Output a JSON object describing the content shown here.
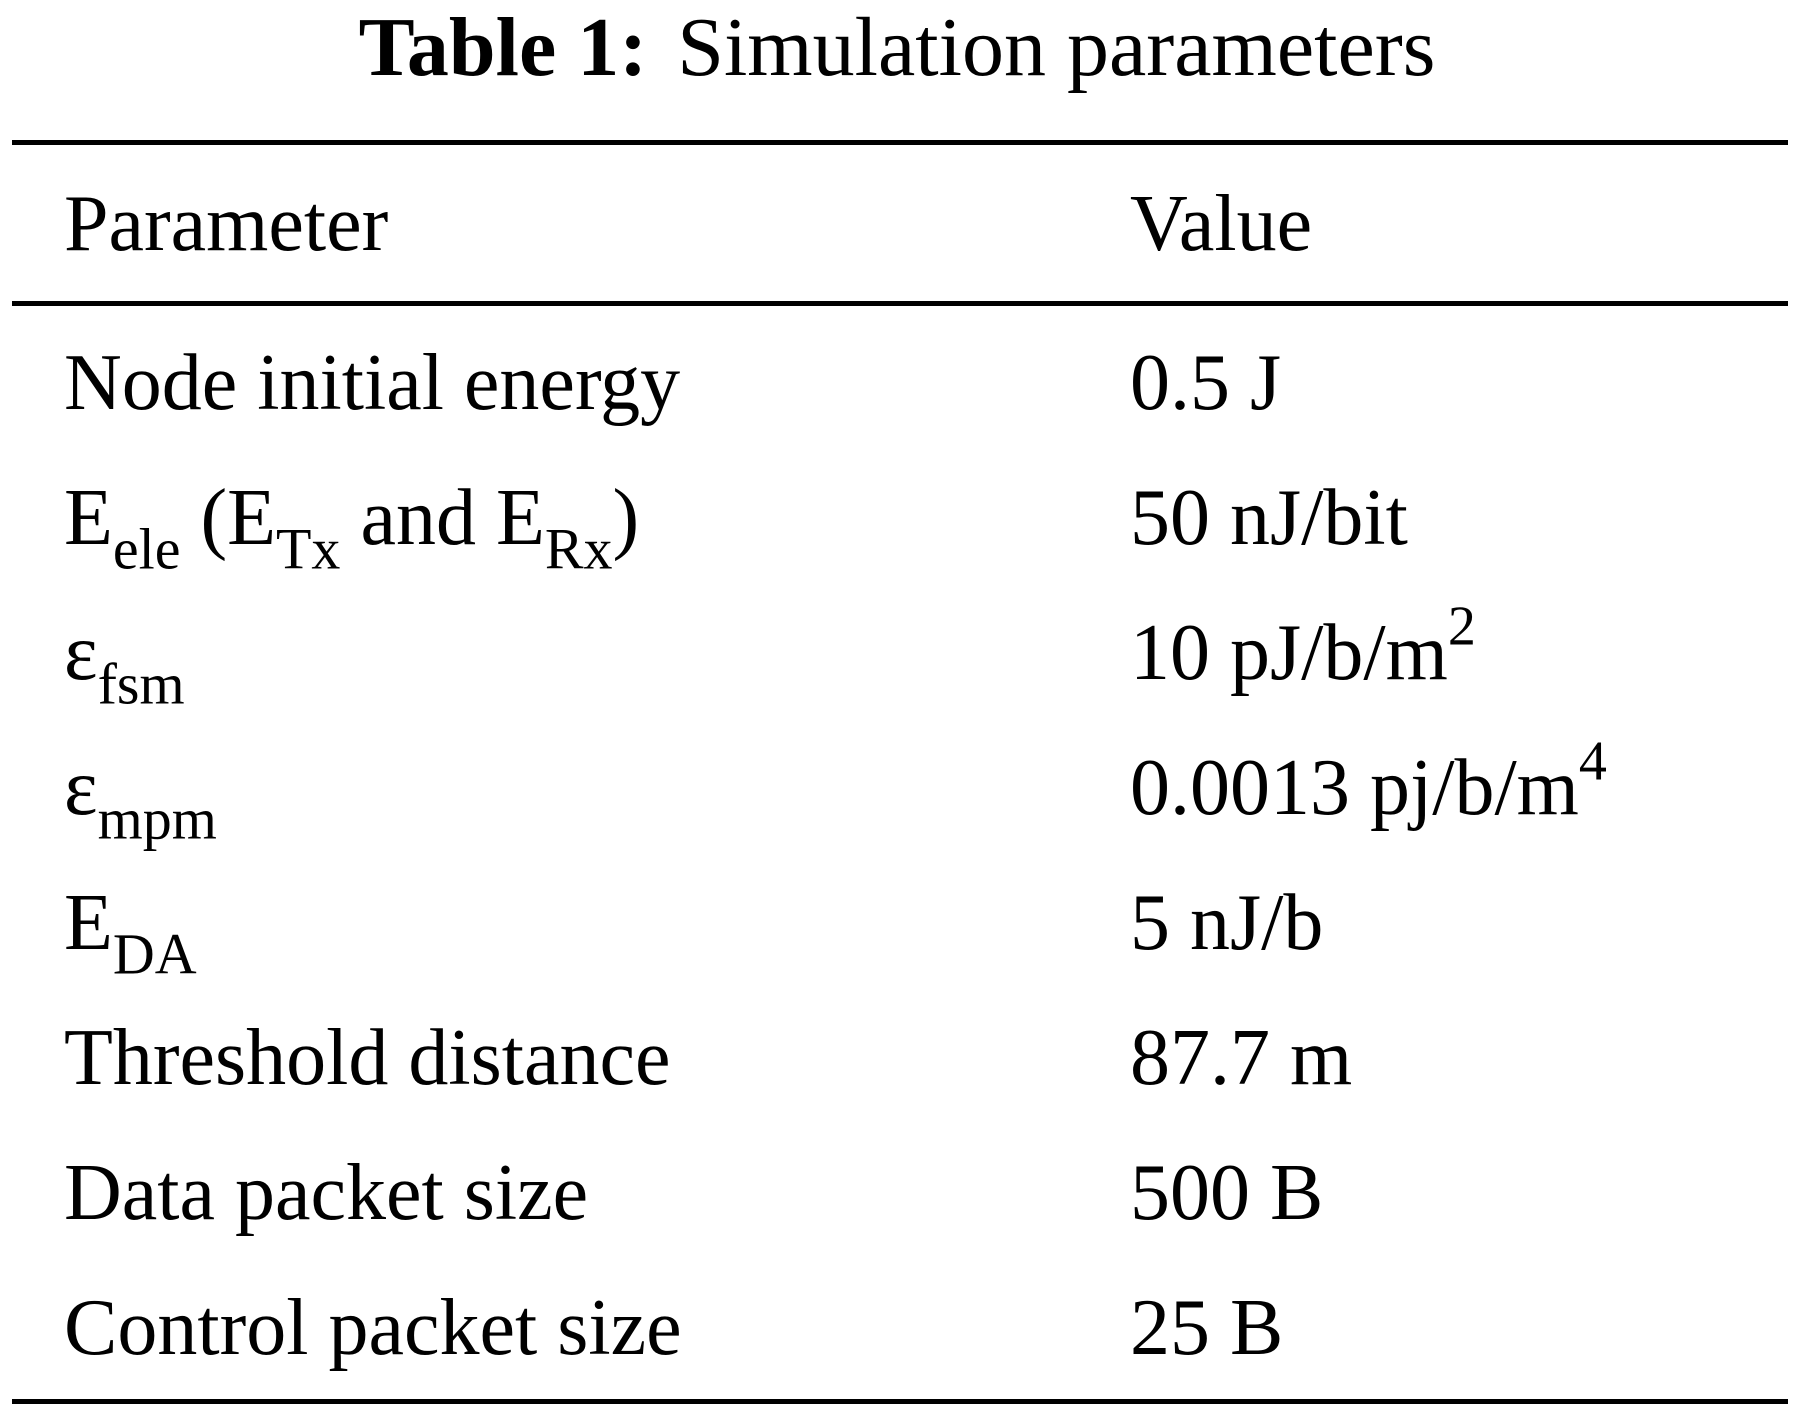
{
  "caption": {
    "label": "Table 1:",
    "title": "Simulation parameters"
  },
  "table": {
    "headers": {
      "parameter": "Parameter",
      "value": "Value"
    },
    "rows": [
      {
        "parameter": "Node initial energy",
        "value": "0.5 J"
      },
      {
        "parameter": "Eele (ETx and ERx)",
        "value": "50 nJ/bit"
      },
      {
        "parameter": "εfsm",
        "value": "10 pJ/b/m2"
      },
      {
        "parameter": "εmpm",
        "value": "0.0013 pj/b/m4"
      },
      {
        "parameter": "EDA",
        "value": "5 nJ/b"
      },
      {
        "parameter": "Threshold distance",
        "value": "87.7 m"
      },
      {
        "parameter": "Data packet size",
        "value": "500 B"
      },
      {
        "parameter": "Control packet size",
        "value": "25 B"
      }
    ],
    "formatted": {
      "eele": {
        "E": "E",
        "ele": "ele",
        "open": " (E",
        "tx": "Tx",
        "and": " and E",
        "rx": "Rx",
        "close": ")"
      },
      "efsm": {
        "eps": "ε",
        "sub": "fsm",
        "value_base": "10 pJ/b/m",
        "value_exp": "2"
      },
      "empm": {
        "eps": "ε",
        "sub": "mpm",
        "value_base": "0.0013 pj/b/m",
        "value_exp": "4"
      },
      "eda": {
        "E": "E",
        "sub": "DA"
      }
    }
  }
}
